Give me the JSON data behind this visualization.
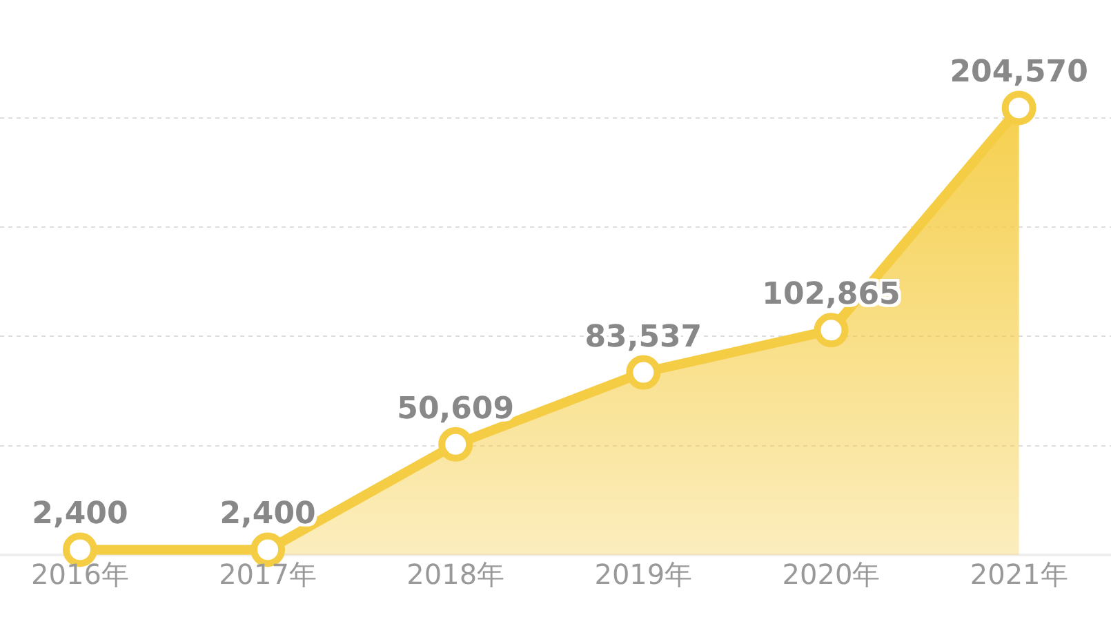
{
  "chart_data": {
    "type": "area",
    "categories": [
      "2016年",
      "2017年",
      "2018年",
      "2019年",
      "2020年",
      "2021年"
    ],
    "series": [
      {
        "color": "#f5cd45",
        "values": [
          2400,
          2400,
          50609,
          83537,
          102865,
          204570
        ],
        "value_labels": [
          "2,400",
          "2,400",
          "50,609",
          "83,537",
          "102,865",
          "204,570"
        ]
      }
    ],
    "grid": "y",
    "marker": "circle",
    "line_style": "solid",
    "tick_labels": "x"
  }
}
